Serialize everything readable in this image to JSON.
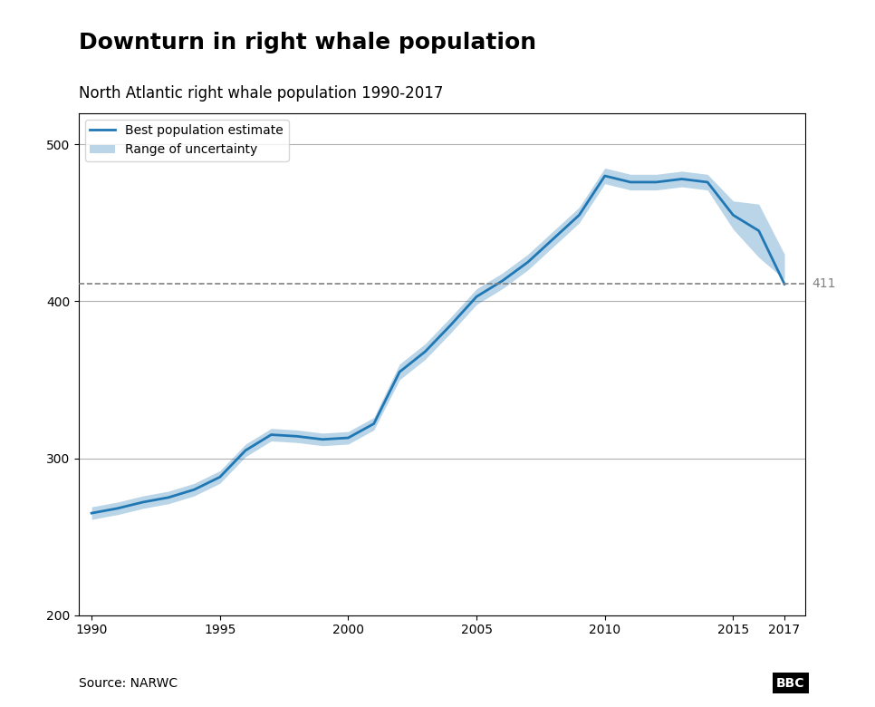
{
  "chart_data": {
    "type": "line",
    "title": "Downturn in right whale population",
    "subtitle": "North Atlantic right whale population 1990-2017",
    "x": [
      1990,
      1991,
      1992,
      1993,
      1994,
      1995,
      1996,
      1997,
      1998,
      1999,
      2000,
      2001,
      2002,
      2003,
      2004,
      2005,
      2006,
      2007,
      2008,
      2009,
      2010,
      2011,
      2012,
      2013,
      2014,
      2015,
      2016,
      2017
    ],
    "series": [
      {
        "name": "Best population estimate",
        "type": "line",
        "values": [
          265,
          268,
          272,
          275,
          280,
          288,
          305,
          315,
          314,
          312,
          313,
          322,
          355,
          368,
          385,
          403,
          413,
          425,
          440,
          455,
          480,
          476,
          476,
          478,
          476,
          455,
          445,
          411
        ]
      },
      {
        "name": "Range of uncertainty",
        "type": "band",
        "lower": [
          261,
          264,
          268,
          271,
          276,
          284,
          301,
          311,
          310,
          308,
          309,
          318,
          350,
          363,
          380,
          398,
          408,
          420,
          435,
          450,
          475,
          471,
          471,
          473,
          471,
          446,
          428,
          414
        ],
        "upper": [
          269,
          272,
          276,
          279,
          284,
          292,
          309,
          319,
          318,
          316,
          317,
          326,
          360,
          373,
          390,
          408,
          418,
          430,
          445,
          460,
          485,
          481,
          481,
          483,
          481,
          464,
          462,
          430
        ]
      }
    ],
    "xlim": [
      1989.5,
      2017.8
    ],
    "xticks": [
      1990,
      1995,
      2000,
      2005,
      2010,
      2015,
      2017
    ],
    "ylim": [
      200,
      520
    ],
    "yticks": [
      200,
      300,
      400,
      500
    ],
    "grid": "y",
    "legend": "upper left",
    "annotations": [
      {
        "text": "411",
        "y": 411,
        "line_style": "dashed",
        "color": "gray"
      },
      {
        "text": "Source: NARWC",
        "position": "bottom left"
      },
      {
        "text": "BBC",
        "position": "bottom right"
      }
    ]
  }
}
